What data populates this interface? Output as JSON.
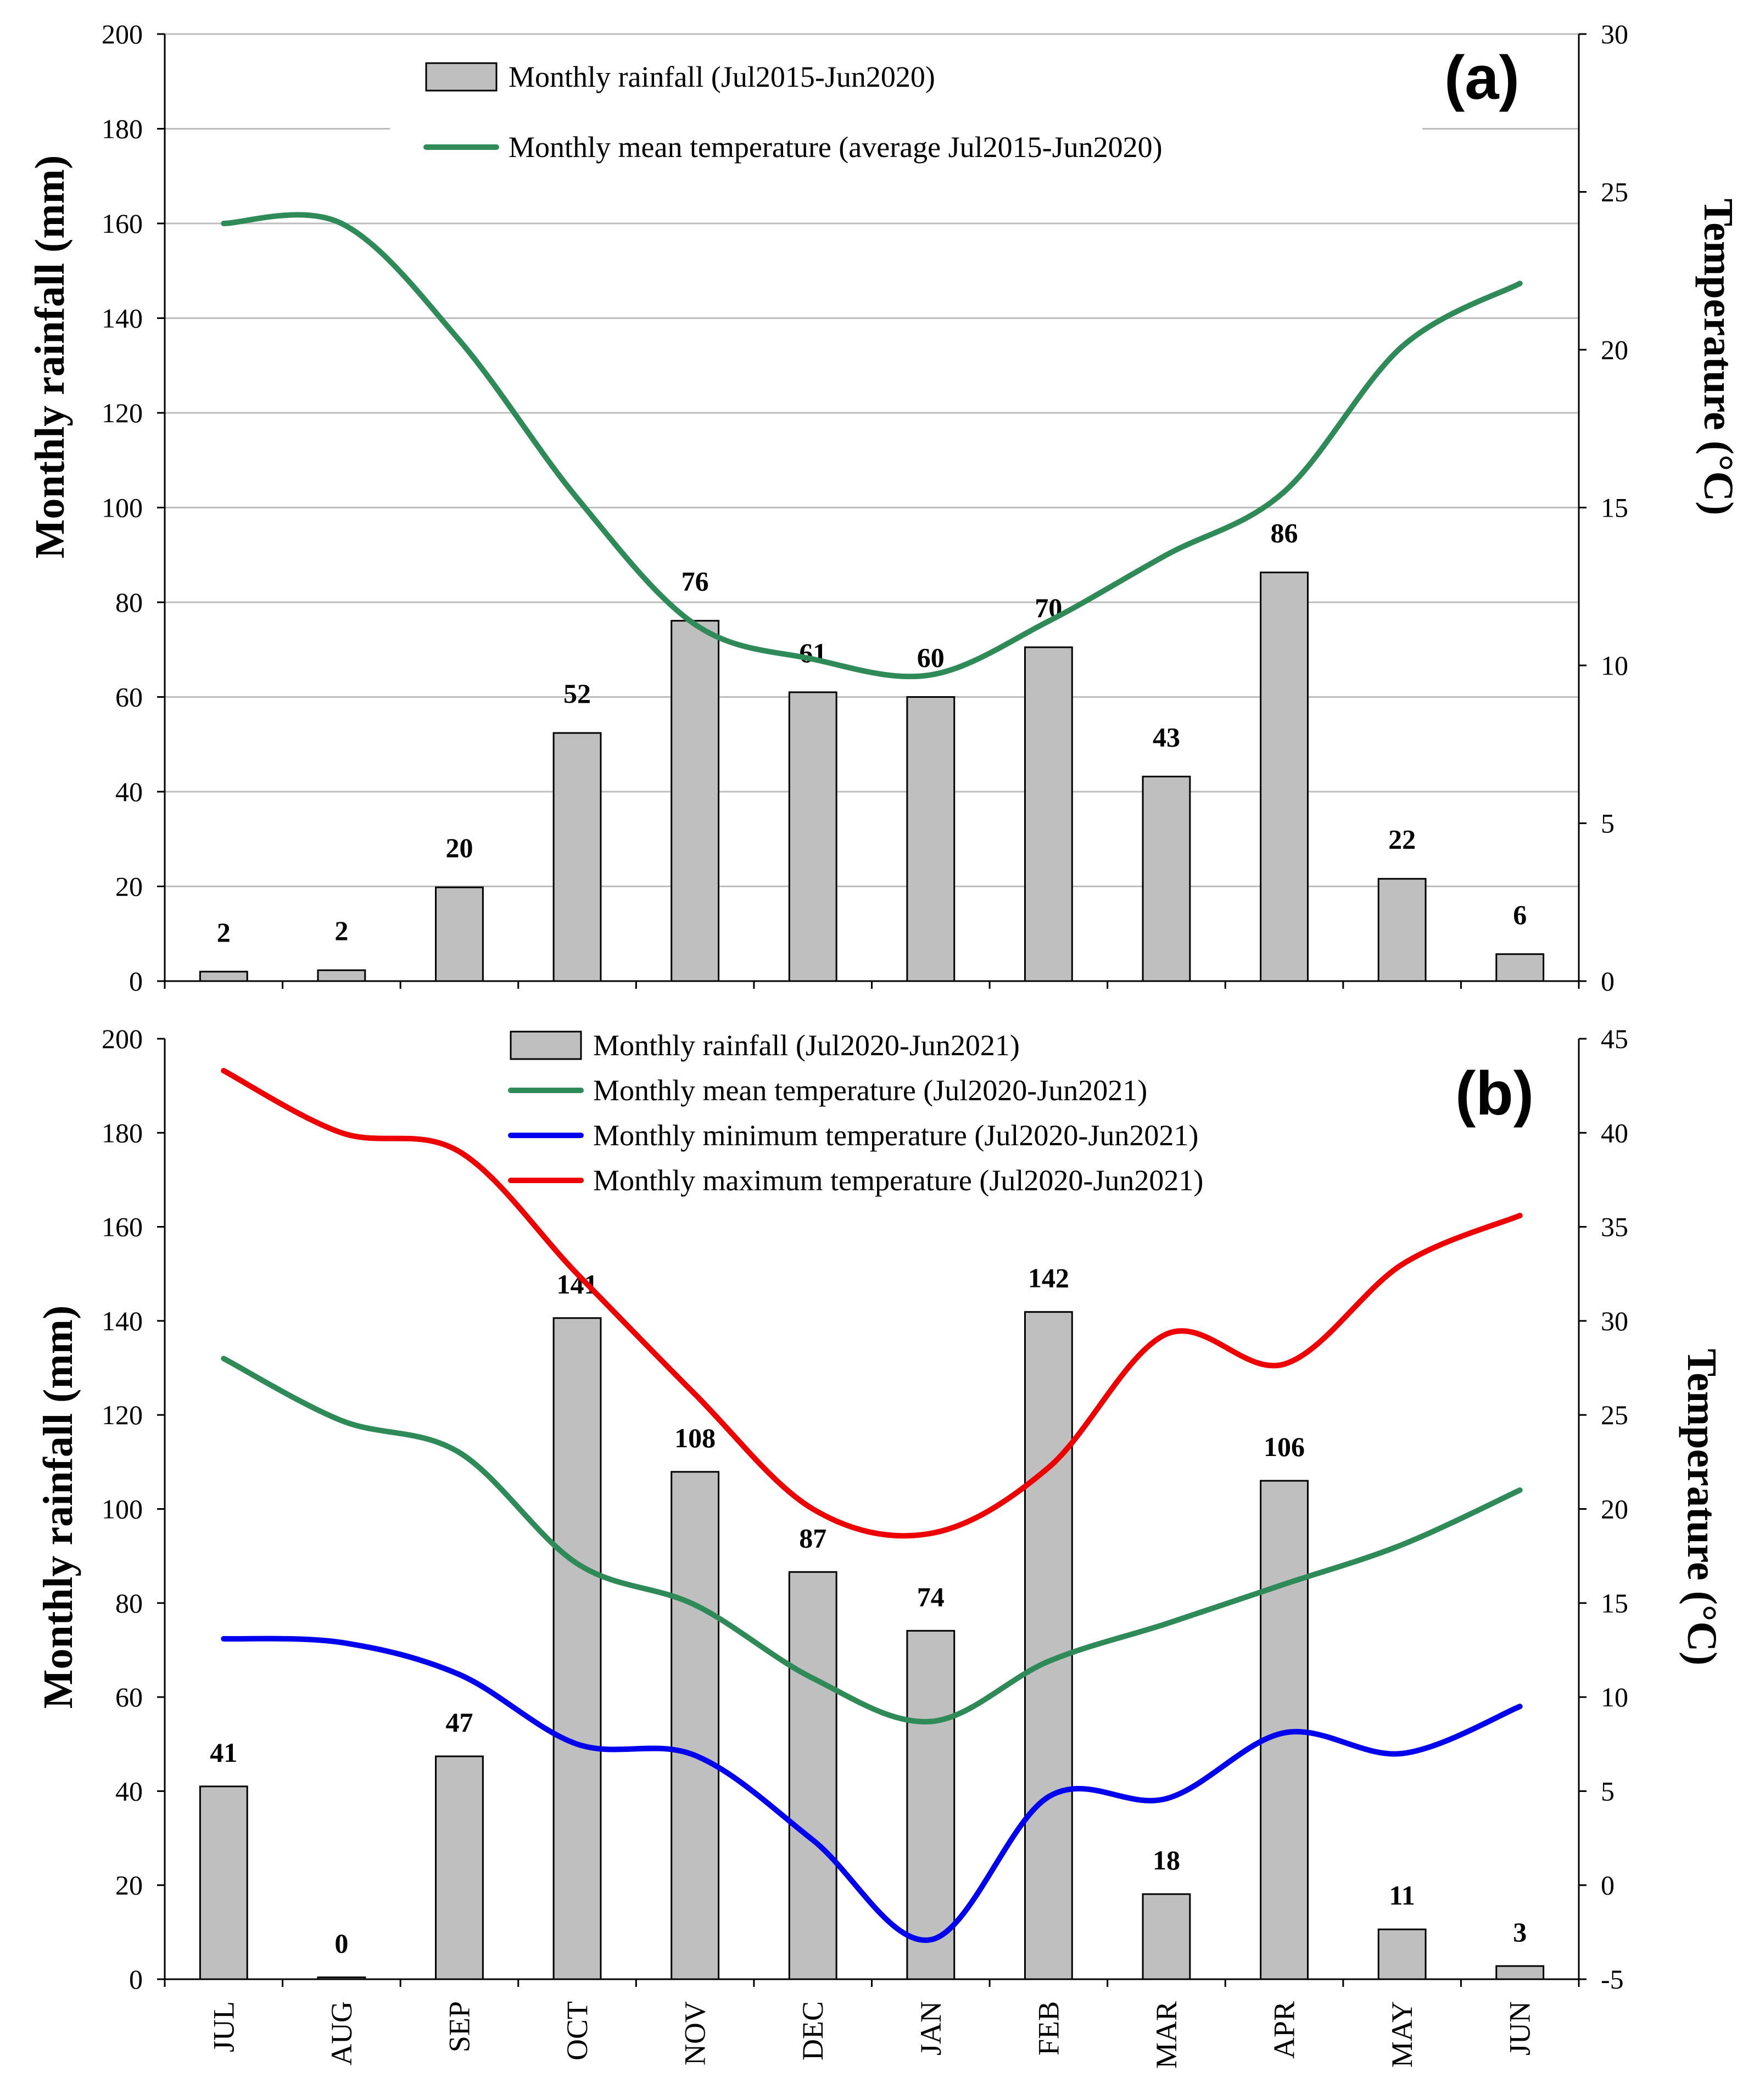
{
  "chart_data": [
    {
      "panel": "(a)",
      "type": "bar+line",
      "categories": [
        "JUL",
        "AUG",
        "SEP",
        "OCT",
        "NOV",
        "DEC",
        "JAN",
        "FEB",
        "MAR",
        "APR",
        "MAY",
        "JUN"
      ],
      "ylabel": "Monthly rainfall (mm)",
      "y2label": "Temperature (°C)",
      "ylim": [
        0,
        200
      ],
      "y2lim": [
        0,
        30
      ],
      "yticks": [
        0,
        20,
        40,
        60,
        80,
        100,
        120,
        140,
        160,
        180,
        200
      ],
      "y2ticks": [
        0,
        5,
        10,
        15,
        20,
        25,
        30
      ],
      "grid": true,
      "legend_position": "top-center",
      "series": [
        {
          "name": "Monthly rainfall (Jul2015-Jun2020)",
          "kind": "bar",
          "axis": "left",
          "color": "#bfbfbf",
          "values": [
            2,
            2.3,
            19.8,
            52.4,
            76.1,
            61.0,
            60.0,
            70.5,
            43.2,
            86.3,
            21.6,
            5.7
          ],
          "labels": [
            "2",
            "2",
            "20",
            "52",
            "76",
            "61",
            "60",
            "70",
            "43",
            "86",
            "22",
            "6"
          ]
        },
        {
          "name": "Monthly mean temperature (average Jul2015-Jun2020)",
          "kind": "line",
          "axis": "right",
          "color": "#2e8b57",
          "values": [
            24.0,
            24.0,
            20.3,
            15.3,
            11.3,
            10.2,
            9.7,
            11.4,
            13.5,
            15.5,
            20.1,
            22.1
          ]
        }
      ]
    },
    {
      "panel": "(b)",
      "type": "bar+line",
      "categories": [
        "JUL",
        "AUG",
        "SEP",
        "OCT",
        "NOV",
        "DEC",
        "JAN",
        "FEB",
        "MAR",
        "APR",
        "MAY",
        "JUN"
      ],
      "ylabel": "Monthly rainfall (mm)",
      "y2label": "Temperature (°C)",
      "ylim": [
        0,
        200
      ],
      "y2lim": [
        -5,
        45
      ],
      "yticks": [
        0,
        20,
        40,
        60,
        80,
        100,
        120,
        140,
        160,
        180,
        200
      ],
      "y2ticks": [
        -5,
        0,
        5,
        10,
        15,
        20,
        25,
        30,
        35,
        40,
        45
      ],
      "grid": false,
      "legend_position": "top-center",
      "series": [
        {
          "name": "Monthly rainfall (Jul2020-Jun2021)",
          "kind": "bar",
          "axis": "left",
          "color": "#bfbfbf",
          "values": [
            41.0,
            0.4,
            47.4,
            140.6,
            107.9,
            86.6,
            74.1,
            141.9,
            18.1,
            106.0,
            10.6,
            2.8
          ],
          "labels": [
            "41",
            "0",
            "47",
            "141",
            "108",
            "87",
            "74",
            "142",
            "18",
            "106",
            "11",
            "3"
          ]
        },
        {
          "name": "Monthly mean temperature (Jul2020-Jun2021)",
          "kind": "line",
          "axis": "right",
          "color": "#2e8b57",
          "values": [
            28.0,
            24.7,
            23.0,
            17.1,
            14.9,
            11.0,
            8.7,
            11.9,
            13.9,
            16.0,
            18.1,
            21.0
          ]
        },
        {
          "name": "Monthly minimum temperature (Jul2020-Jun2021)",
          "kind": "line",
          "axis": "right",
          "color": "#0000ee",
          "values": [
            13.1,
            12.9,
            11.2,
            7.5,
            6.9,
            2.4,
            -2.9,
            4.7,
            4.6,
            8.1,
            7.0,
            9.5
          ]
        },
        {
          "name": "Monthly maximum temperature (Jul2020-Jun2021)",
          "kind": "line",
          "axis": "right",
          "color": "#ee0000",
          "values": [
            43.3,
            40.0,
            39.0,
            32.5,
            26.1,
            20.0,
            18.7,
            22.2,
            29.3,
            27.7,
            33.0,
            35.6
          ]
        }
      ]
    }
  ]
}
